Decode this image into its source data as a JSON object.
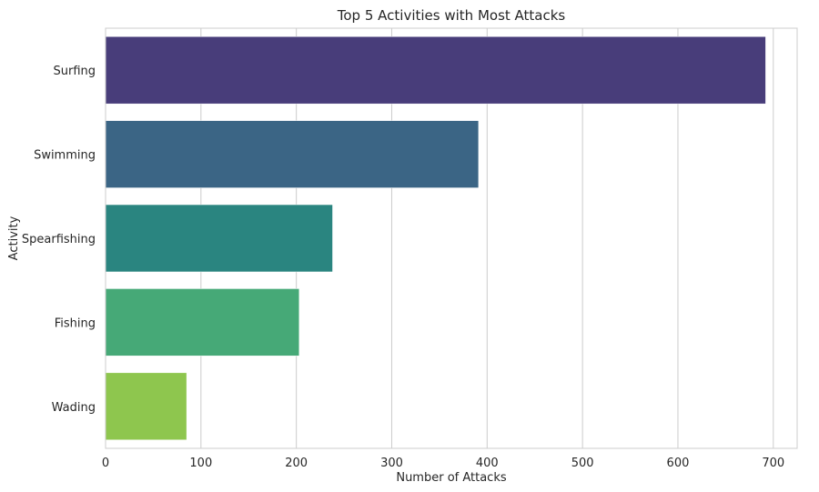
{
  "chart_data": {
    "type": "bar",
    "orientation": "horizontal",
    "title": "Top 5 Activities with Most Attacks",
    "xlabel": "Number of Attacks",
    "ylabel": "Activity",
    "categories": [
      "Surfing",
      "Swimming",
      "Spearfishing",
      "Fishing",
      "Wading"
    ],
    "values": [
      692,
      391,
      238,
      203,
      85
    ],
    "colors": [
      "#483d7a",
      "#3b6585",
      "#2a8580",
      "#46a977",
      "#8ec64e"
    ],
    "xlim": [
      0,
      725
    ],
    "xticks": [
      0,
      100,
      200,
      300,
      400,
      500,
      600,
      700
    ],
    "grid": "vertical",
    "legend": "none"
  }
}
